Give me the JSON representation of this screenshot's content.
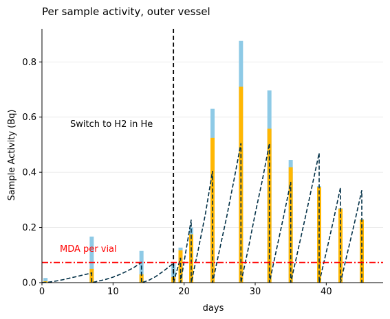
{
  "chart_data": {
    "type": "bar",
    "title": "Per sample activity, outer vessel",
    "xlabel": "days",
    "ylabel": "Sample Activity (Bq)",
    "xlim": [
      0,
      48
    ],
    "ylim": [
      0,
      0.92
    ],
    "xticks": [
      0,
      10,
      20,
      30,
      40
    ],
    "yticks": [
      0.0,
      0.2,
      0.4,
      0.6,
      0.8
    ],
    "grid": "horizontal",
    "colors": {
      "total_bar": "#8ecae6",
      "component_bar": "#ffb703",
      "model_line": "#023047",
      "mda_line": "#ff0000",
      "switch_line": "#000000"
    },
    "bars": {
      "x": [
        0.5,
        7,
        14,
        18.5,
        19.5,
        21,
        24,
        28,
        32,
        35,
        39,
        42,
        45
      ],
      "total": [
        0.017,
        0.167,
        0.115,
        0.07,
        0.127,
        0.2,
        0.63,
        0.876,
        0.697,
        0.445,
        0.35,
        0.27,
        0.23
      ],
      "component": [
        0.005,
        0.05,
        0.03,
        0.02,
        0.117,
        0.175,
        0.525,
        0.71,
        0.558,
        0.418,
        0.346,
        0.268,
        0.228
      ]
    },
    "model_curve": {
      "x": [
        0,
        1,
        2,
        3,
        4,
        5,
        6,
        7,
        7,
        8,
        9,
        10,
        11,
        12,
        13,
        14,
        14,
        15,
        16,
        17,
        18.5,
        18.5,
        19.5,
        19.5,
        21,
        21,
        22,
        23,
        24,
        24,
        25,
        26,
        27,
        28,
        28,
        29,
        30,
        31,
        32,
        32,
        33,
        34,
        35,
        35,
        36,
        37,
        38,
        39,
        39,
        40,
        41,
        42,
        42,
        43,
        44,
        45,
        45
      ],
      "y": [
        0,
        0.002,
        0.006,
        0.011,
        0.017,
        0.023,
        0.029,
        0.035,
        0,
        0.006,
        0.012,
        0.02,
        0.03,
        0.042,
        0.056,
        0.073,
        0,
        0.008,
        0.022,
        0.04,
        0.07,
        0,
        0.09,
        0,
        0.228,
        0,
        0.12,
        0.25,
        0.405,
        0,
        0.12,
        0.24,
        0.37,
        0.505,
        0,
        0.12,
        0.25,
        0.37,
        0.505,
        0,
        0.12,
        0.24,
        0.365,
        0,
        0.115,
        0.23,
        0.35,
        0.47,
        0,
        0.11,
        0.225,
        0.345,
        0,
        0.11,
        0.22,
        0.335,
        0
      ]
    },
    "mda": {
      "y": 0.073,
      "label": "MDA per vial"
    },
    "switch": {
      "x": 18.5,
      "label": "Switch to H2 in He"
    }
  }
}
